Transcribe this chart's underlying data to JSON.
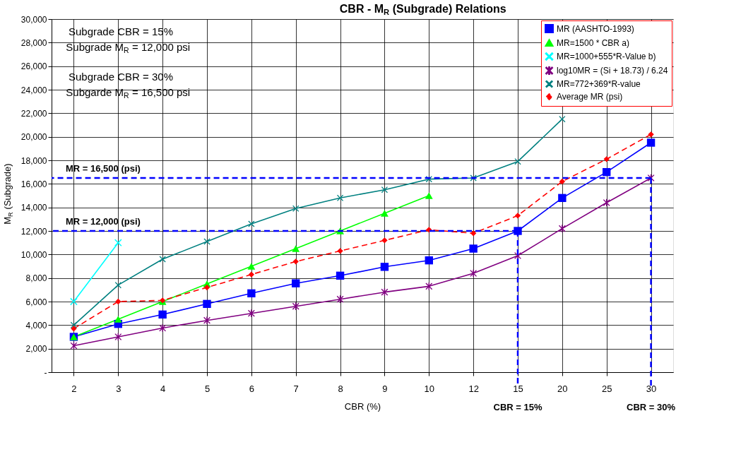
{
  "chart_data": {
    "type": "line",
    "title": "CBR - M$_{R}$ (Subgrade) Relations",
    "xlabel": "CBR (%)",
    "ylabel": "M$_{R}$ (Subgrade)",
    "categories": [
      "2",
      "3",
      "4",
      "5",
      "6",
      "7",
      "8",
      "9",
      "10",
      "12",
      "15",
      "20",
      "25",
      "30"
    ],
    "ylim": [
      0,
      30000
    ],
    "yticks": [
      {
        "value": 0,
        "label": "-"
      },
      {
        "value": 2000,
        "label": "2,000"
      },
      {
        "value": 4000,
        "label": "4,000"
      },
      {
        "value": 6000,
        "label": "6,000"
      },
      {
        "value": 8000,
        "label": "8,000"
      },
      {
        "value": 10000,
        "label": "10,000"
      },
      {
        "value": 12000,
        "label": "12,000"
      },
      {
        "value": 14000,
        "label": "14,000"
      },
      {
        "value": 16000,
        "label": "16,000"
      },
      {
        "value": 18000,
        "label": "18,000"
      },
      {
        "value": 20000,
        "label": "20,000"
      },
      {
        "value": 22000,
        "label": "22,000"
      },
      {
        "value": 24000,
        "label": "24,000"
      },
      {
        "value": 26000,
        "label": "26,000"
      },
      {
        "value": 28000,
        "label": "28,000"
      },
      {
        "value": 30000,
        "label": "30,000"
      }
    ],
    "grid": true,
    "legend": "top right",
    "line_style": "solid",
    "series": [
      {
        "name": "MR (AASHTO-1993)",
        "color": "#0000ff",
        "marker": "square",
        "values": [
          3000,
          4100,
          4900,
          5800,
          6700,
          7550,
          8200,
          8950,
          9500,
          10500,
          12000,
          14800,
          17000,
          19500
        ]
      },
      {
        "name": "MR=1500 * CBR a)",
        "color": "#00ff00",
        "marker": "triangle",
        "values": [
          3000,
          4500,
          6000,
          7500,
          9000,
          10500,
          12000,
          13500,
          15000,
          null,
          null,
          null,
          null,
          null
        ]
      },
      {
        "name": "MR=1000+555*R-Value b)",
        "color": "#00ffff",
        "marker": "cross",
        "values": [
          6000,
          11000,
          null,
          null,
          null,
          null,
          null,
          null,
          null,
          null,
          null,
          null,
          null,
          null
        ]
      },
      {
        "name": "log10MR = (Si + 18.73) / 6.24",
        "color": "#800080",
        "marker": "star",
        "values": [
          2250,
          3000,
          3750,
          4400,
          5000,
          5600,
          6200,
          6800,
          7300,
          8400,
          9900,
          12200,
          14400,
          16500
        ]
      },
      {
        "name": "MR=772+369*R-value",
        "color": "#008080",
        "marker": "cross",
        "values": [
          4000,
          7400,
          9600,
          11100,
          12600,
          13900,
          14800,
          15500,
          16400,
          16500,
          17900,
          21500,
          null,
          null
        ]
      },
      {
        "name": "Average MR (psi)",
        "color": "#ff0000",
        "marker": "diamond",
        "line_style": "dashed",
        "values": [
          3700,
          6000,
          6100,
          7200,
          8300,
          9400,
          10300,
          11200,
          12100,
          11800,
          13300,
          16200,
          18100,
          20200
        ]
      }
    ],
    "ref_lines": [
      {
        "axis": "y",
        "value": 12000,
        "label": "MR = 12,000 (psi)",
        "color": "#0000ff",
        "line_style": "dashed"
      },
      {
        "axis": "y",
        "value": 16500,
        "label": "MR = 16,500 (psi)",
        "color": "#0000ff",
        "line_style": "dashed"
      },
      {
        "axis": "x",
        "value": "15",
        "label": "CBR = 15%",
        "color": "#0000ff",
        "line_style": "dashed"
      },
      {
        "axis": "x",
        "value": "30",
        "label": "CBR = 30%",
        "color": "#0000ff",
        "line_style": "dashed"
      }
    ],
    "annotations": [
      "Subgrade CBR = 15%",
      "Subgrade M$_{R}$ = 12,000 psi",
      "Subgrade CBR = 30%",
      "Subgarde M$_{R}$ = 16,500 psi"
    ]
  }
}
